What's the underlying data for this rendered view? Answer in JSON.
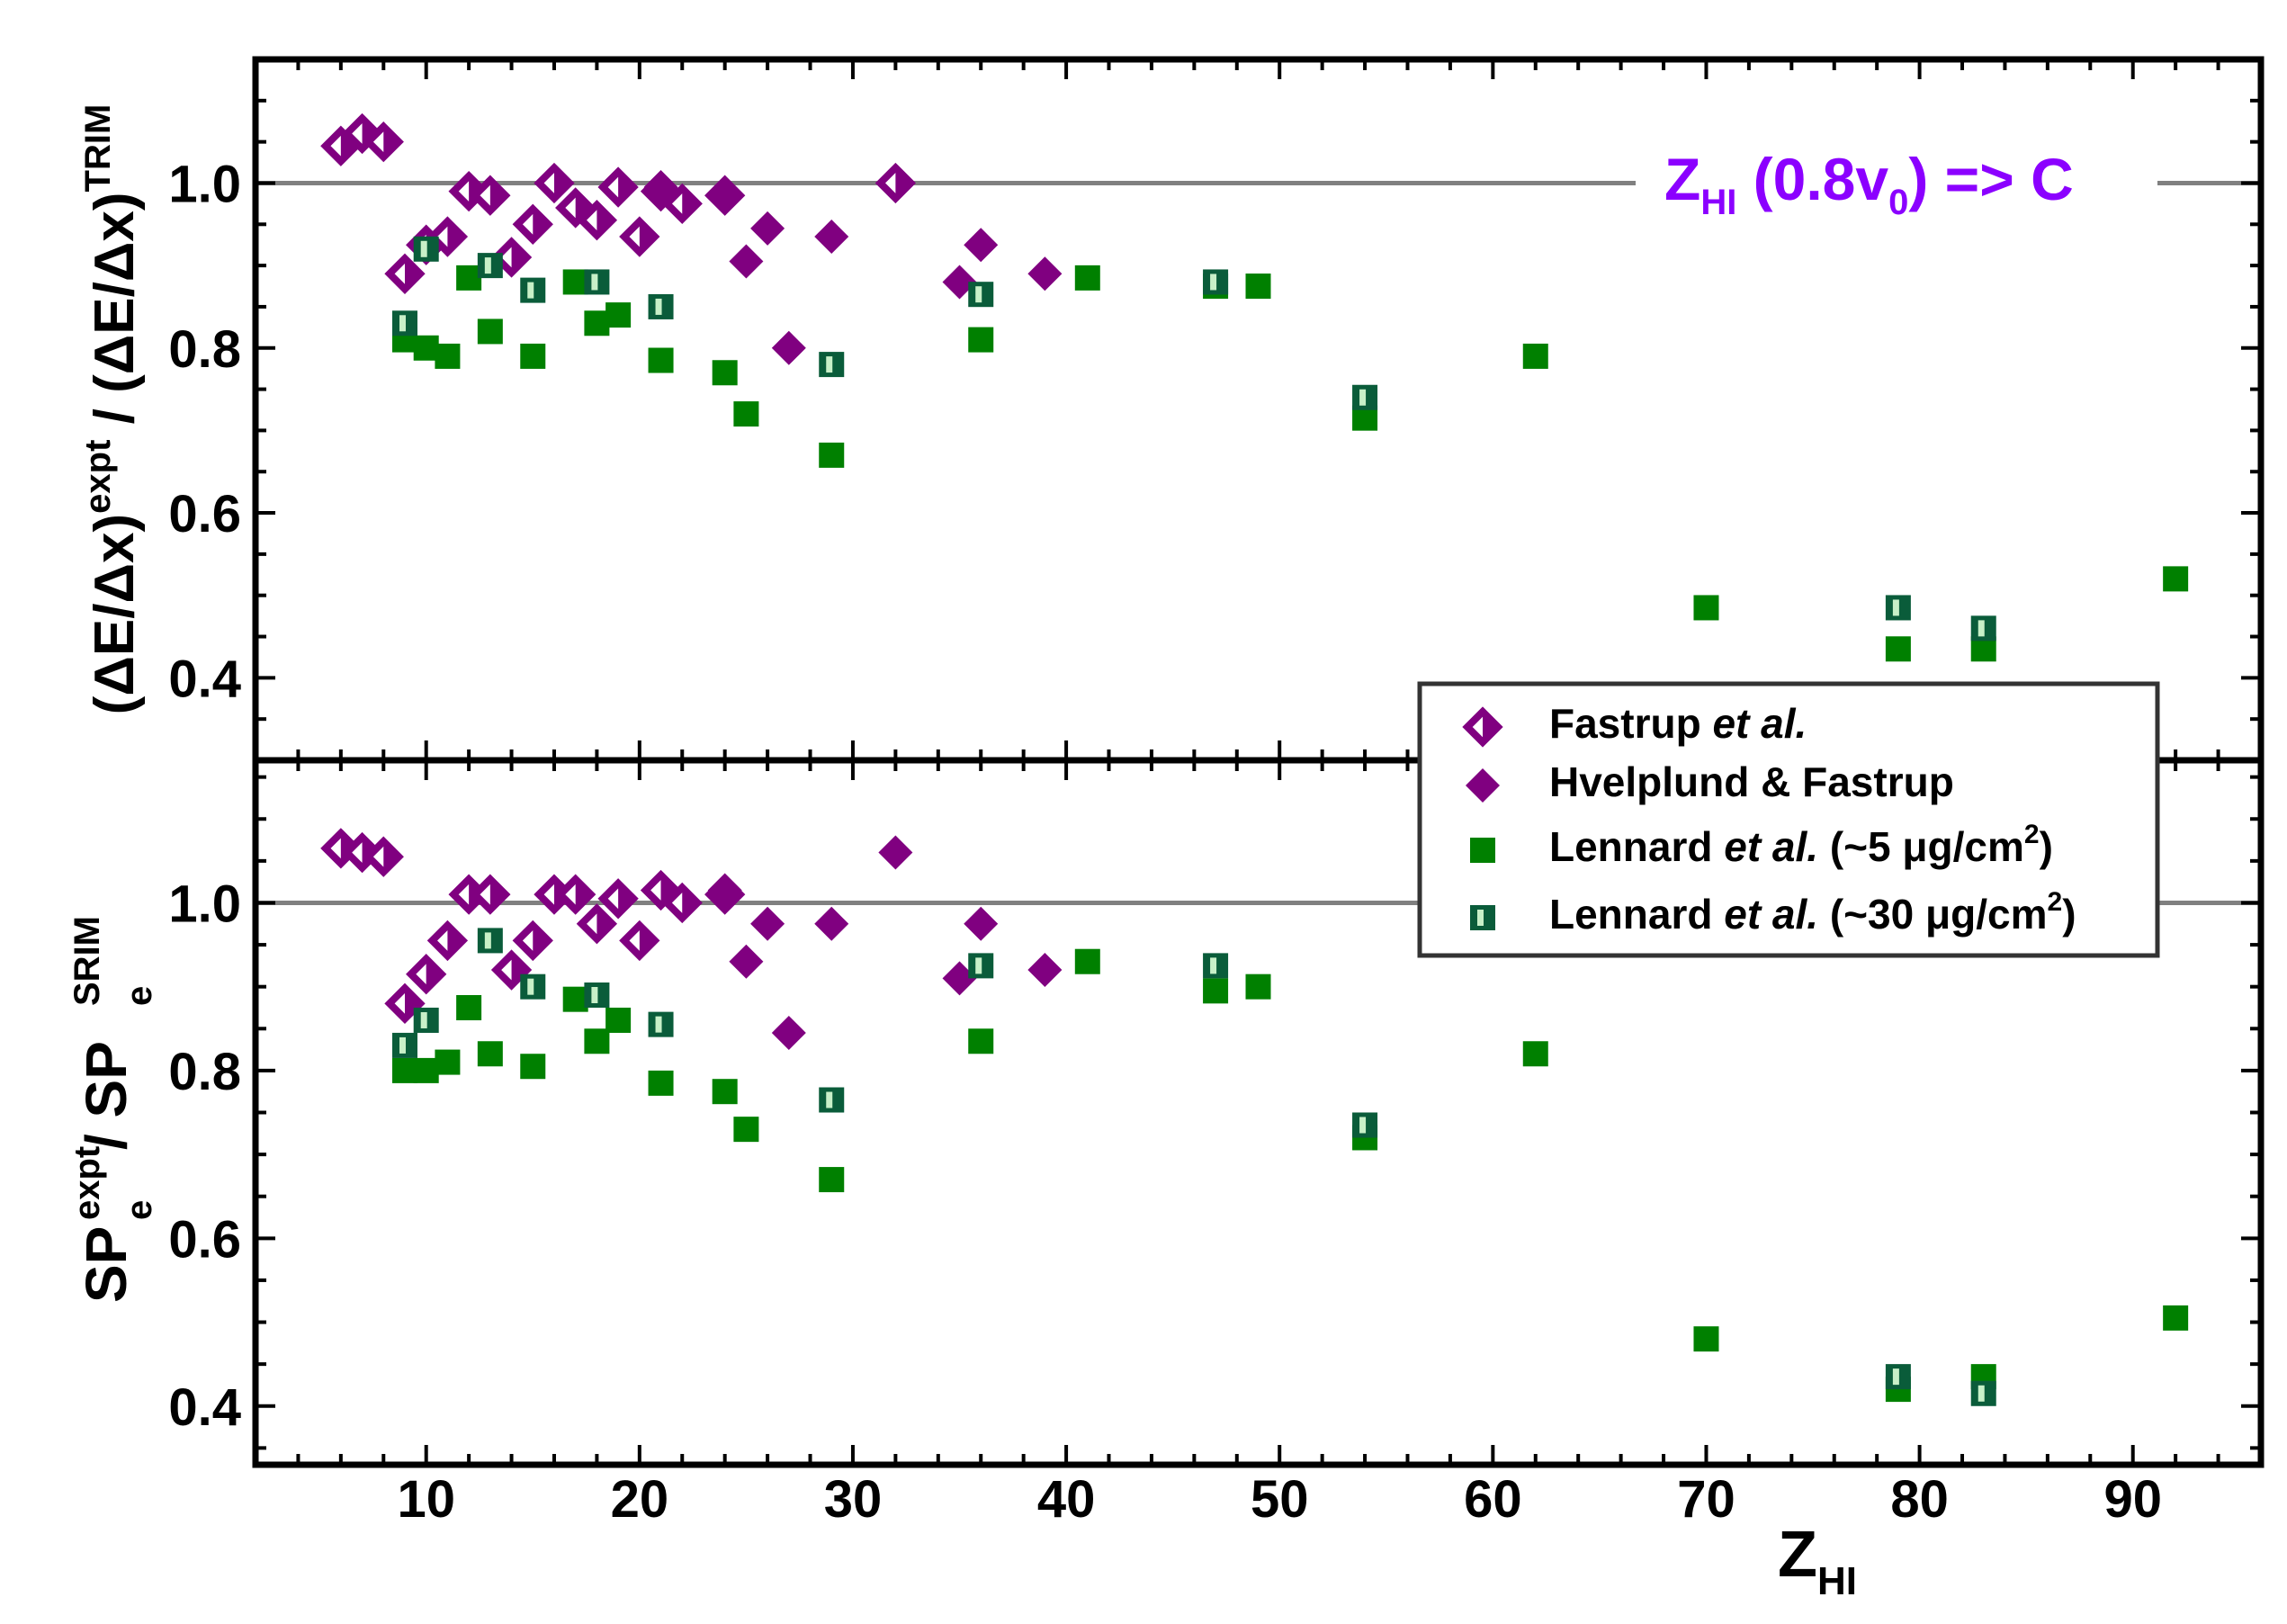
{
  "chart_data": {
    "type": "scatter",
    "colors": {
      "fastrup": "#800080",
      "hvelplund": "#800080",
      "lennard_thin": "#008000",
      "lennard_thick_fill": "#0a5c3a",
      "lennard_thick_stripe": "#c8f0c8",
      "annotation": "#8b00ff",
      "reference_line": "#808080",
      "axes": "#000000"
    },
    "xlabel": {
      "main": "Z",
      "sub": "HI"
    },
    "xlim": [
      2,
      96
    ],
    "xticks": [
      "10",
      "20",
      "30",
      "40",
      "50",
      "60",
      "70",
      "80",
      "90"
    ],
    "legend": {
      "placement": "right, centered on the panel boundary",
      "entries": [
        {
          "key": "fastrup",
          "marker": "diamond-open",
          "label": "Fastrup",
          "italic": "et al.",
          "suffix": ""
        },
        {
          "key": "hvelplund",
          "marker": "diamond-filled",
          "label": "Hvelplund & Fastrup",
          "italic": "",
          "suffix": ""
        },
        {
          "key": "lennard_thin",
          "marker": "square-filled",
          "label": "Lennard",
          "italic": "et al.",
          "suffix": "(~5 μg/cm",
          "sup": "2",
          "close": ")"
        },
        {
          "key": "lennard_thick",
          "marker": "square-striped",
          "label": "Lennard",
          "italic": "et al.",
          "suffix": "(~30 μg/cm",
          "sup": "2",
          "close": ")"
        }
      ]
    },
    "panels": [
      {
        "name": "top",
        "ylabel": {
          "open": "(ΔE/Δx)",
          "sup1": "expt",
          "mid": " / (ΔE/Δx)",
          "sup2": "TRIM"
        },
        "ylim": [
          0.3,
          1.15
        ],
        "yticks": [
          "0.4",
          "0.6",
          "0.8",
          "1.0"
        ],
        "reference_line": 1.0,
        "annotation": {
          "Z": "Z",
          "sub1": "HI",
          "open": " (0.8v",
          "sub2": "0",
          "close": ") => C"
        },
        "series": [
          {
            "key": "fastrup",
            "x": [
              6,
              7,
              8,
              9,
              10,
              11,
              12,
              13,
              14,
              15,
              16,
              17,
              18,
              19,
              20,
              21,
              22,
              24,
              32
            ],
            "y": [
              1.045,
              1.06,
              1.05,
              0.89,
              0.925,
              0.935,
              0.99,
              0.985,
              0.91,
              0.95,
              1.0,
              0.97,
              0.955,
              0.995,
              0.935,
              0.99,
              0.975,
              0.985,
              1.0
            ]
          },
          {
            "key": "hvelplund",
            "x": [
              21,
              24,
              25,
              26,
              27,
              29,
              35,
              36,
              39
            ],
            "y": [
              0.995,
              0.985,
              0.905,
              0.945,
              0.8,
              0.935,
              0.88,
              0.925,
              0.89
            ]
          },
          {
            "key": "lennard_thin",
            "x": [
              9,
              10,
              11,
              12,
              13,
              15,
              17,
              18,
              19,
              21,
              24,
              25,
              29,
              36,
              41,
              47,
              49,
              54,
              62,
              70,
              79,
              83,
              92
            ],
            "y": [
              0.81,
              0.8,
              0.79,
              0.885,
              0.82,
              0.79,
              0.88,
              0.83,
              0.84,
              0.785,
              0.77,
              0.72,
              0.67,
              0.81,
              0.885,
              0.875,
              0.875,
              0.715,
              0.79,
              0.485,
              0.435,
              0.435,
              0.52
            ]
          },
          {
            "key": "lennard_thick",
            "x": [
              9,
              10,
              13,
              15,
              18,
              21,
              29,
              36,
              47,
              54,
              79,
              83
            ],
            "y": [
              0.83,
              0.92,
              0.9,
              0.87,
              0.88,
              0.85,
              0.78,
              0.865,
              0.88,
              0.74,
              0.485,
              0.46
            ]
          }
        ]
      },
      {
        "name": "bottom",
        "ylabel": {
          "sp1": "SP",
          "sup1": "expt",
          "sub1": "e",
          "mid": " / SP",
          "sup2": "SRIM",
          "sub2": "e"
        },
        "ylim": [
          0.33,
          1.17
        ],
        "yticks": [
          "0.4",
          "0.6",
          "0.8",
          "1.0"
        ],
        "reference_line": 1.0,
        "series": [
          {
            "key": "fastrup",
            "x": [
              6,
              7,
              8,
              9,
              10,
              11,
              12,
              13,
              14,
              15,
              16,
              17,
              18,
              19,
              20,
              21,
              22,
              24
            ],
            "y": [
              1.065,
              1.06,
              1.055,
              0.88,
              0.915,
              0.955,
              1.01,
              1.01,
              0.92,
              0.955,
              1.01,
              1.01,
              0.975,
              1.005,
              0.955,
              1.015,
              1.0,
              1.01
            ]
          },
          {
            "key": "hvelplund",
            "x": [
              24,
              25,
              26,
              27,
              29,
              32,
              35,
              36,
              39
            ],
            "y": [
              1.015,
              0.93,
              0.975,
              0.845,
              0.975,
              1.06,
              0.91,
              0.975,
              0.92
            ]
          },
          {
            "key": "lennard_thin",
            "x": [
              9,
              10,
              11,
              12,
              13,
              15,
              17,
              18,
              19,
              21,
              24,
              25,
              29,
              36,
              41,
              47,
              49,
              54,
              62,
              70,
              79,
              83,
              92
            ],
            "y": [
              0.8,
              0.8,
              0.81,
              0.875,
              0.82,
              0.805,
              0.885,
              0.835,
              0.86,
              0.785,
              0.775,
              0.73,
              0.67,
              0.835,
              0.93,
              0.895,
              0.9,
              0.72,
              0.82,
              0.48,
              0.42,
              0.435,
              0.505
            ]
          },
          {
            "key": "lennard_thick",
            "x": [
              9,
              10,
              13,
              15,
              18,
              21,
              29,
              36,
              47,
              54,
              79,
              83
            ],
            "y": [
              0.83,
              0.86,
              0.955,
              0.9,
              0.89,
              0.855,
              0.765,
              0.925,
              0.925,
              0.735,
              0.435,
              0.415
            ]
          }
        ]
      }
    ]
  }
}
